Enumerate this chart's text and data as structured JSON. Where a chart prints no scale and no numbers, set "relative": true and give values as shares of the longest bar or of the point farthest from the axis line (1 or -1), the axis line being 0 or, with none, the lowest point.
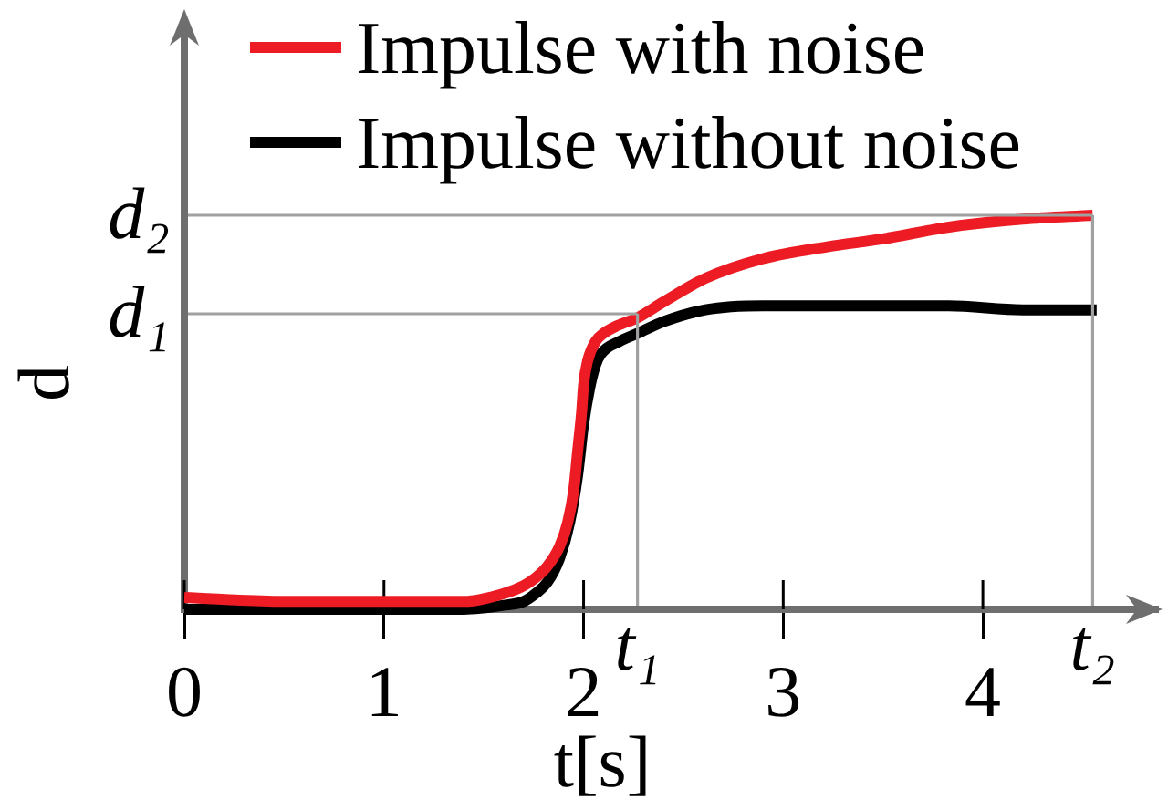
{
  "chart_data": {
    "type": "line",
    "xlabel": "t[s]",
    "ylabel": "d",
    "relative": true,
    "xlim": [
      0,
      4.9
    ],
    "xticks": [
      0,
      1,
      2,
      3,
      4
    ],
    "legend": "top left",
    "series": [
      {
        "name": "Impulse with noise",
        "color": "#ed1c24",
        "x": [
          0,
          0.5,
          1,
          1.4,
          1.6,
          1.7,
          1.76,
          1.82,
          1.88,
          1.92,
          1.95,
          1.97,
          1.99,
          2,
          2.02,
          2.06,
          2.1,
          2.17,
          2.27,
          2.4,
          2.61,
          2.9,
          3.22,
          3.5,
          3.83,
          4.2,
          4.55
        ],
        "values": [
          0.03,
          0.02,
          0.02,
          0.02,
          0.04,
          0.06,
          0.08,
          0.11,
          0.16,
          0.22,
          0.3,
          0.4,
          0.5,
          0.57,
          0.63,
          0.68,
          0.7,
          0.72,
          0.74,
          0.78,
          0.84,
          0.89,
          0.92,
          0.94,
          0.97,
          0.99,
          1
        ]
      },
      {
        "name": "Impulse without noise",
        "color": "#000000",
        "x": [
          0,
          0.5,
          1,
          1.4,
          1.6,
          1.7,
          1.76,
          1.82,
          1.88,
          1.93,
          1.97,
          2,
          2.03,
          2.06,
          2.09,
          2.18,
          2.27,
          2.4,
          2.61,
          2.9,
          3.3,
          3.83,
          4.2,
          4.57
        ],
        "values": [
          0,
          0,
          0,
          0,
          0.01,
          0.02,
          0.04,
          0.07,
          0.13,
          0.22,
          0.34,
          0.47,
          0.56,
          0.62,
          0.65,
          0.68,
          0.7,
          0.73,
          0.76,
          0.77,
          0.77,
          0.77,
          0.76,
          0.76
        ]
      }
    ],
    "ref_lines": [
      {
        "axis": "x",
        "value": 2.27,
        "label": "t₁",
        "color": "#a0a0a0"
      },
      {
        "axis": "x",
        "value": 4.55,
        "label": "t₂",
        "color": "#a0a0a0"
      },
      {
        "axis": "y",
        "value": 0.75,
        "label": "d₁",
        "color": "#a0a0a0"
      },
      {
        "axis": "y",
        "value": 1,
        "label": "d₂",
        "color": "#a0a0a0"
      }
    ]
  }
}
